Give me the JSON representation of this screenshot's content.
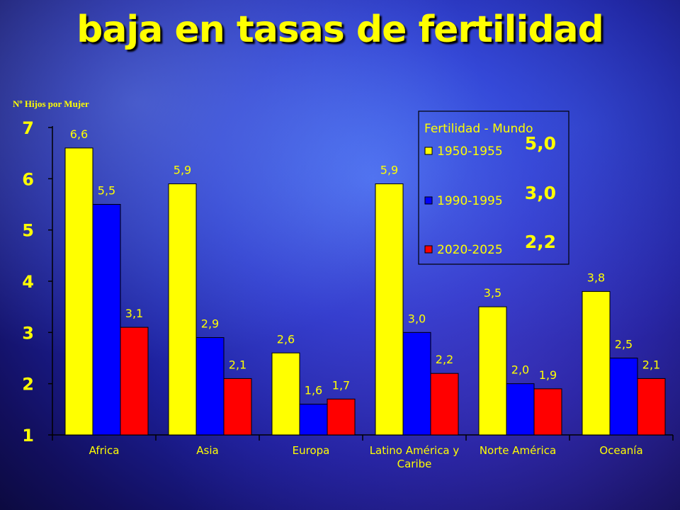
{
  "title": "baja en tasas de fertilidad",
  "units_label": "Nº Hijos por Mujer",
  "colors": {
    "series": [
      "#ffff00",
      "#0000ff",
      "#ff0000"
    ],
    "text": "#ffff00",
    "legend_bg": "#ffffff"
  },
  "chart_data": {
    "type": "bar",
    "title": "baja en tasas de fertilidad",
    "ylabel": "Nº Hijos por Mujer",
    "xlabel": "",
    "ylim": [
      1,
      7
    ],
    "yticks": [
      "1",
      "2",
      "3",
      "4",
      "5",
      "6",
      "7"
    ],
    "grid": false,
    "categories": [
      "Africa",
      "Asia",
      "Europa",
      "Latino América y Caribe",
      "Norte América",
      "Oceanía"
    ],
    "category_lines": [
      [
        "Africa"
      ],
      [
        "Asia"
      ],
      [
        "Europa"
      ],
      [
        "Latino América y",
        "Caribe"
      ],
      [
        "Norte América"
      ],
      [
        "Oceanía"
      ]
    ],
    "series": [
      {
        "name": "1950-1955",
        "values": [
          6.6,
          5.9,
          2.6,
          5.9,
          3.5,
          3.8
        ],
        "labels": [
          "6,6",
          "5,9",
          "2,6",
          "5,9",
          "3,5",
          "3,8"
        ]
      },
      {
        "name": "1990-1995",
        "values": [
          5.5,
          2.9,
          1.6,
          3.0,
          2.0,
          2.5
        ],
        "labels": [
          "5,5",
          "2,9",
          "1,6",
          "3,0",
          "2,0",
          "2,5"
        ]
      },
      {
        "name": "2020-2025",
        "values": [
          3.1,
          2.1,
          1.7,
          2.2,
          1.9,
          2.1
        ],
        "labels": [
          "3,1",
          "2,1",
          "1,7",
          "2,2",
          "1,9",
          "2,1"
        ]
      }
    ],
    "legend": {
      "title": "Fertilidad - Mundo",
      "placement": "top-right",
      "world_values": [
        "5,0",
        "3,0",
        "2,2"
      ]
    }
  }
}
